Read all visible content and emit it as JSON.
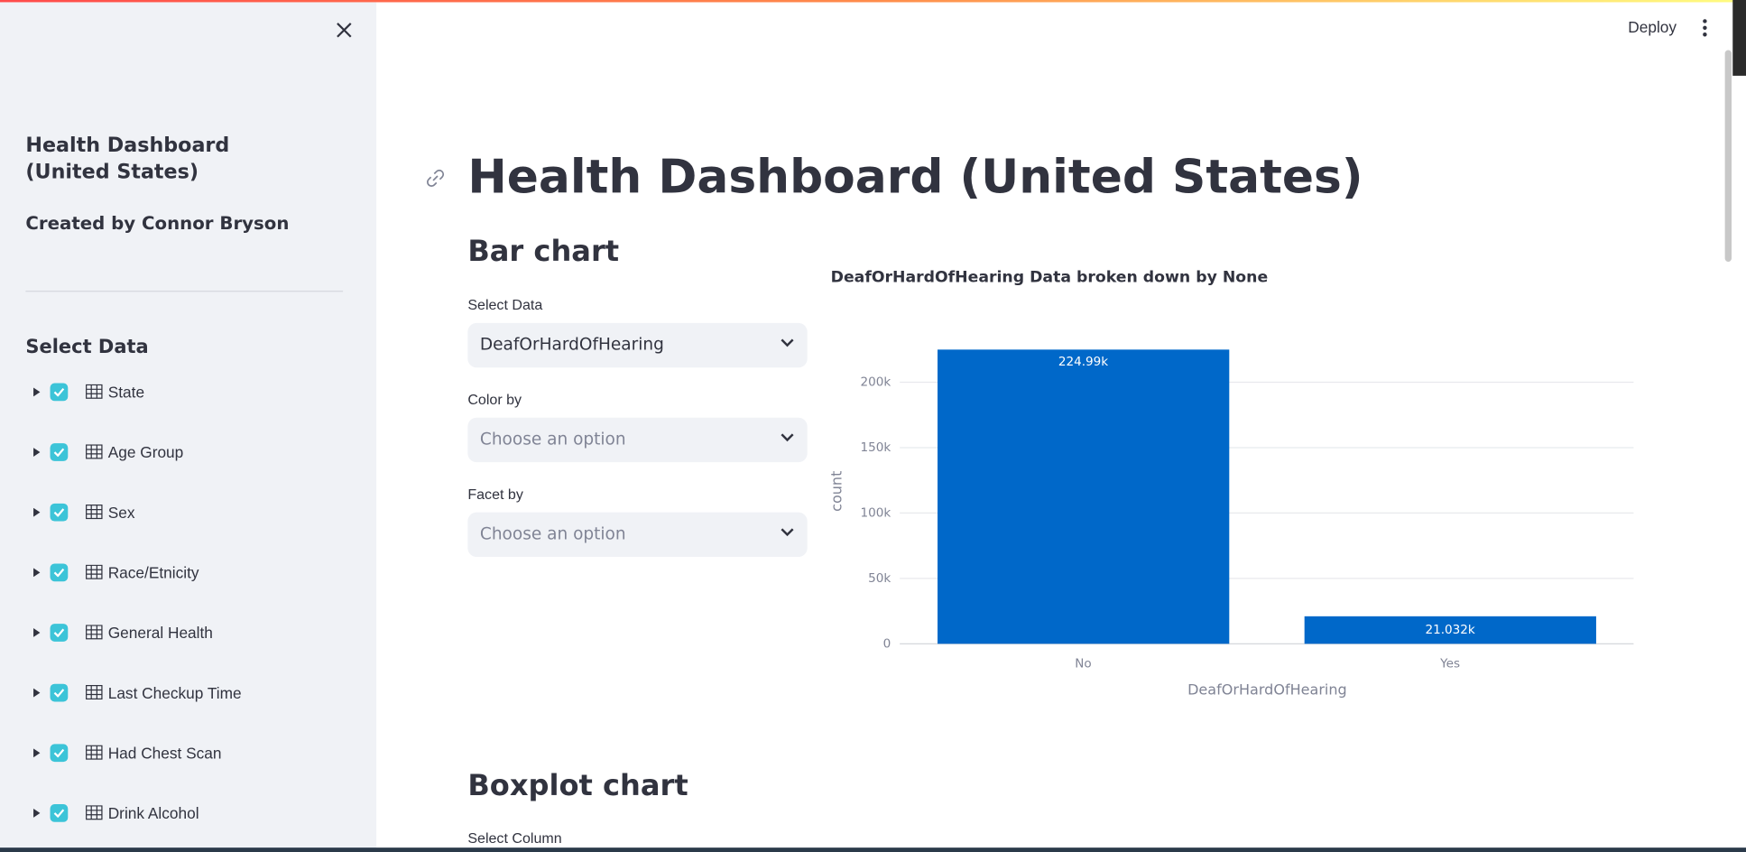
{
  "header": {
    "deploy": "Deploy"
  },
  "sidebar": {
    "title": "Health Dashboard (United States)",
    "author": "Created by Connor Bryson",
    "section": "Select Data",
    "items": [
      "State",
      "Age Group",
      "Sex",
      "Race/Etnicity",
      "General Health",
      "Last Checkup Time",
      "Had Chest Scan",
      "Drink Alcohol"
    ]
  },
  "main": {
    "title": "Health Dashboard (United States)",
    "bar_section": "Bar chart",
    "controls": [
      {
        "label": "Select Data",
        "value": "DeafOrHardOfHearing"
      },
      {
        "label": "Color by",
        "value": "Choose an option"
      },
      {
        "label": "Facet by",
        "value": "Choose an option"
      }
    ],
    "box_section": "Boxplot chart",
    "box_control": "Select Column"
  },
  "chart_data": {
    "type": "bar",
    "title": "DeafOrHardOfHearing Data broken down by None",
    "x_label": "DeafOrHardOfHearing",
    "y_label": "count",
    "categories": [
      "No",
      "Yes"
    ],
    "values": [
      224990,
      21032
    ],
    "value_labels": [
      "224.99k",
      "21.032k"
    ],
    "color": "#0068c9",
    "ylim": [
      0,
      236800
    ],
    "yticks": [
      0,
      {
        "value": 50000,
        "label": "50k"
      },
      {
        "value": 100000,
        "label": "100k"
      },
      {
        "value": 150000,
        "label": "150k"
      },
      {
        "value": 200000,
        "label": "200k"
      }
    ],
    "grid": true
  }
}
